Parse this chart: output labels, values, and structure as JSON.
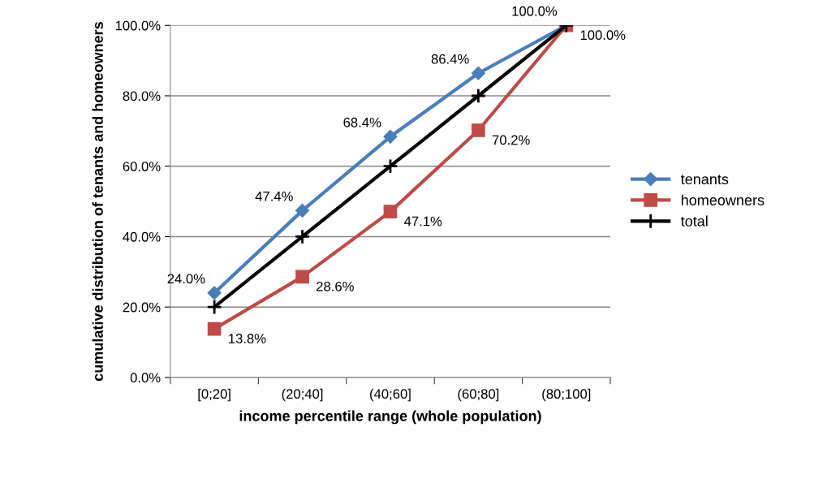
{
  "chart_data": {
    "type": "line",
    "xlabel": "income percentile range (whole population)",
    "ylabel": "cumulative distribution of tenants and homeowners",
    "categories": [
      "[0;20]",
      "(20;40]",
      "(40;60]",
      "(60;80]",
      "(80;100]"
    ],
    "series": [
      {
        "name": "tenants",
        "color": "#4a7ebb",
        "marker": "diamond",
        "values": [
          24.0,
          47.4,
          68.4,
          86.4,
          100.0
        ],
        "value_labels": [
          "24.0%",
          "47.4%",
          "68.4%",
          "86.4%",
          "100.0%"
        ]
      },
      {
        "name": "homeowners",
        "color": "#be4b48",
        "marker": "square",
        "values": [
          13.8,
          28.6,
          47.1,
          70.2,
          100.0
        ],
        "value_labels": [
          "13.8%",
          "28.6%",
          "47.1%",
          "70.2%",
          "100.0%"
        ]
      },
      {
        "name": "total",
        "color": "#000000",
        "marker": "cross",
        "values": [
          20,
          40,
          60,
          80,
          100
        ]
      }
    ],
    "ylim": [
      0,
      100
    ],
    "yticks": [
      {
        "value": 0,
        "label": "0.0%"
      },
      {
        "value": 20,
        "label": "20.0%"
      },
      {
        "value": 40,
        "label": "40.0%"
      },
      {
        "value": 60,
        "label": "60.0%"
      },
      {
        "value": 80,
        "label": "80.0%"
      },
      {
        "value": 100,
        "label": "100.0%"
      }
    ],
    "grid": "y",
    "legend": "right",
    "line_style": "solid"
  }
}
